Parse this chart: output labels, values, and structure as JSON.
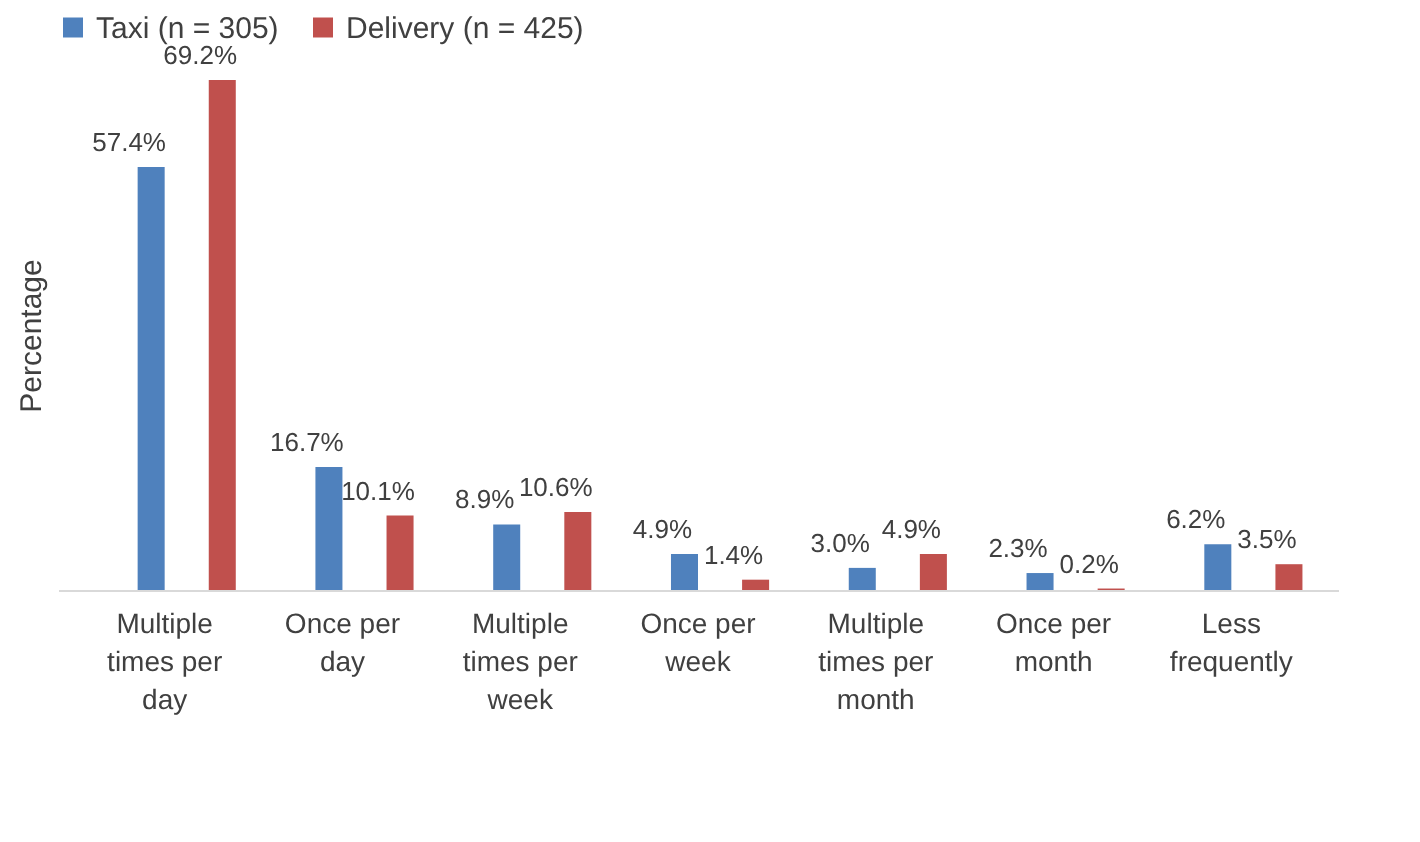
{
  "chart_data": {
    "type": "bar",
    "ylabel": "Percentage",
    "legend": "top",
    "categories": [
      "Multiple times per day",
      "Once per day",
      "Multiple times per week",
      "Once per week",
      "Multiple times per month",
      "Once per month",
      "Less frequently"
    ],
    "series": [
      {
        "name": "Taxi (n = 305)",
        "color": "#4f81bd",
        "values": [
          57.4,
          16.7,
          8.9,
          4.9,
          3.0,
          2.3,
          6.2
        ],
        "value_labels": [
          "57.4%",
          "16.7%",
          "8.9%",
          "4.9%",
          "3.0%",
          "2.3%",
          "6.2%"
        ]
      },
      {
        "name": "Delivery (n = 425)",
        "color": "#c0504d",
        "values": [
          69.2,
          10.1,
          10.6,
          1.4,
          4.9,
          0.2,
          3.5
        ],
        "value_labels": [
          "69.2%",
          "10.1%",
          "10.6%",
          "1.4%",
          "4.9%",
          "0.2%",
          "3.5%"
        ]
      }
    ]
  }
}
